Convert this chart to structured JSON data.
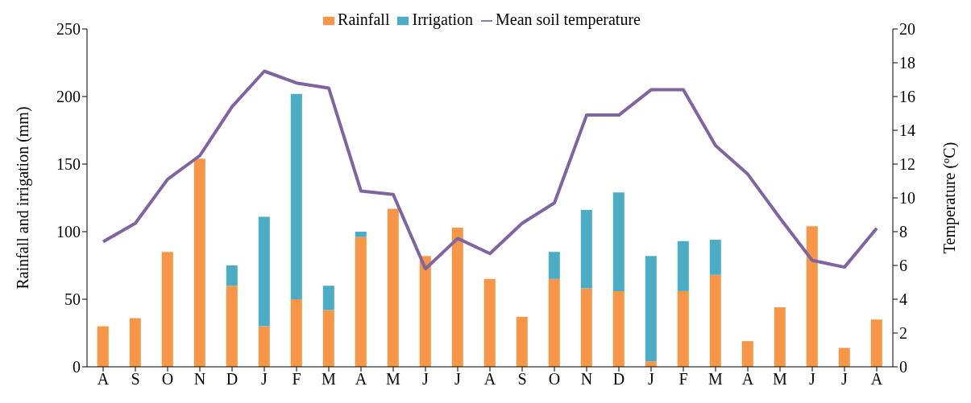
{
  "chart_data": {
    "type": "bar",
    "ylabel": "Rainfall and irrigation (mm)",
    "y2label": "Temperature (ºC)",
    "categories": [
      "A",
      "S",
      "O",
      "N",
      "D",
      "J",
      "F",
      "M",
      "A",
      "M",
      "J",
      "J",
      "A",
      "S",
      "O",
      "N",
      "D",
      "J",
      "F",
      "M",
      "A",
      "M",
      "J",
      "J",
      "A"
    ],
    "stacked": true,
    "legend": "top",
    "ylim": [
      0,
      250
    ],
    "yticks": [
      0,
      50,
      100,
      150,
      200,
      250
    ],
    "y2lim": [
      0,
      20
    ],
    "y2ticks": [
      0,
      2,
      4,
      6,
      8,
      10,
      12,
      14,
      16,
      18,
      20
    ],
    "series": [
      {
        "name": "Rainfall",
        "color": "#f79646",
        "values": [
          30,
          36,
          85,
          154,
          60,
          30,
          50,
          42,
          96,
          117,
          82,
          103,
          65,
          37,
          65,
          58,
          56,
          4,
          56,
          68,
          19,
          44,
          104,
          14,
          35
        ]
      },
      {
        "name": "Irrigation",
        "color": "#4bacc6",
        "values": [
          0,
          0,
          0,
          0,
          15,
          81,
          152,
          18,
          4,
          0,
          0,
          0,
          0,
          0,
          20,
          58,
          73,
          78,
          37,
          26,
          0,
          0,
          0,
          0,
          0
        ]
      },
      {
        "name": "Mean soil temperature",
        "type": "line",
        "axis": "y2",
        "color": "#8064a2",
        "values": [
          7.4,
          8.5,
          11.1,
          12.5,
          15.4,
          17.5,
          16.8,
          16.5,
          10.4,
          10.2,
          5.8,
          7.6,
          6.7,
          8.5,
          9.7,
          14.9,
          14.9,
          16.4,
          16.4,
          13.1,
          11.4,
          8.8,
          6.3,
          5.9,
          8.2
        ]
      }
    ]
  }
}
